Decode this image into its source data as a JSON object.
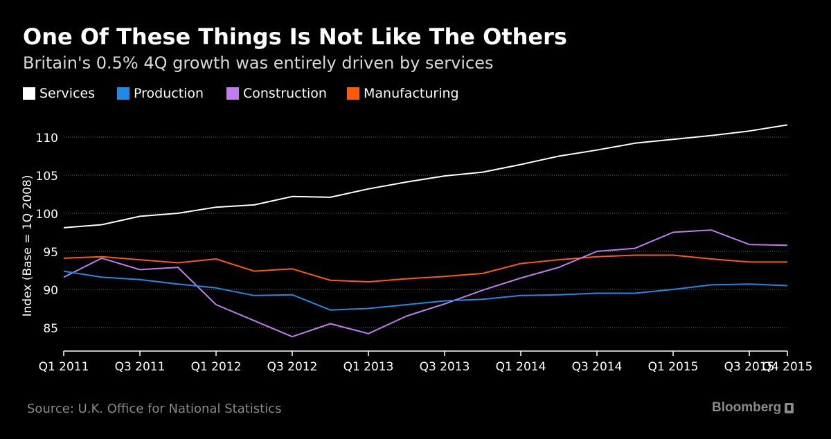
{
  "header": {
    "title": "One Of These Things Is Not Like The Others",
    "subtitle": "Britain's 0.5% 4Q growth was entirely driven by services"
  },
  "footer": {
    "source": "Source: U.K. Office for National Statistics",
    "brand": "Bloomberg"
  },
  "legend": [
    {
      "label": "Services",
      "color": "#ffffff"
    },
    {
      "label": "Production",
      "color": "#1e8ce6"
    },
    {
      "label": "Construction",
      "color": "#c07cf0"
    },
    {
      "label": "Manufacturing",
      "color": "#ff5a0a"
    }
  ],
  "chart_data": {
    "type": "line",
    "title": "One Of These Things Is Not Like The Others",
    "subtitle": "Britain's 0.5% 4Q growth was entirely driven by services",
    "xlabel": "",
    "ylabel": "Index (Base = 1Q 2008)",
    "ylim": [
      82,
      113
    ],
    "yticks": [
      85,
      90,
      95,
      100,
      105,
      110
    ],
    "grid": "horizontal dotted",
    "legend_position": "top-left",
    "x": [
      "Q1 2011",
      "Q2 2011",
      "Q3 2011",
      "Q4 2011",
      "Q1 2012",
      "Q2 2012",
      "Q3 2012",
      "Q4 2012",
      "Q1 2013",
      "Q2 2013",
      "Q3 2013",
      "Q4 2013",
      "Q1 2014",
      "Q2 2014",
      "Q3 2014",
      "Q4 2014",
      "Q1 2015",
      "Q2 2015",
      "Q3 2015",
      "Q4 2015"
    ],
    "xticks": [
      "Q1 2011",
      "Q3 2011",
      "Q1 2012",
      "Q3 2012",
      "Q1 2013",
      "Q3 2013",
      "Q1 2014",
      "Q3 2014",
      "Q1 2015",
      "Q3 2015",
      "Q4 2015"
    ],
    "series": [
      {
        "name": "Services",
        "color": "#ffffff",
        "values": [
          98.1,
          98.5,
          99.6,
          100.0,
          100.8,
          101.1,
          102.2,
          102.1,
          103.2,
          104.1,
          104.9,
          105.4,
          106.4,
          107.5,
          108.3,
          109.2,
          109.7,
          110.2,
          110.8,
          111.6
        ]
      },
      {
        "name": "Production",
        "color": "#1e8ce6",
        "values": [
          92.4,
          91.6,
          91.3,
          90.7,
          90.2,
          89.2,
          89.3,
          87.3,
          87.5,
          88.0,
          88.5,
          88.7,
          89.2,
          89.3,
          89.5,
          89.5,
          90.0,
          90.6,
          90.7,
          90.5
        ]
      },
      {
        "name": "Construction",
        "color": "#c07cf0",
        "values": [
          91.6,
          94.1,
          92.6,
          92.9,
          88.0,
          85.9,
          83.8,
          85.5,
          84.2,
          86.5,
          88.1,
          89.9,
          91.5,
          92.9,
          95.0,
          95.4,
          97.5,
          97.8,
          95.9,
          95.8
        ]
      },
      {
        "name": "Manufacturing",
        "color": "#ff5a0a",
        "values": [
          94.1,
          94.3,
          93.9,
          93.5,
          94.0,
          92.4,
          92.7,
          91.2,
          91.0,
          91.4,
          91.7,
          92.1,
          93.4,
          93.9,
          94.3,
          94.5,
          94.5,
          94.0,
          93.6,
          93.6
        ]
      }
    ]
  }
}
